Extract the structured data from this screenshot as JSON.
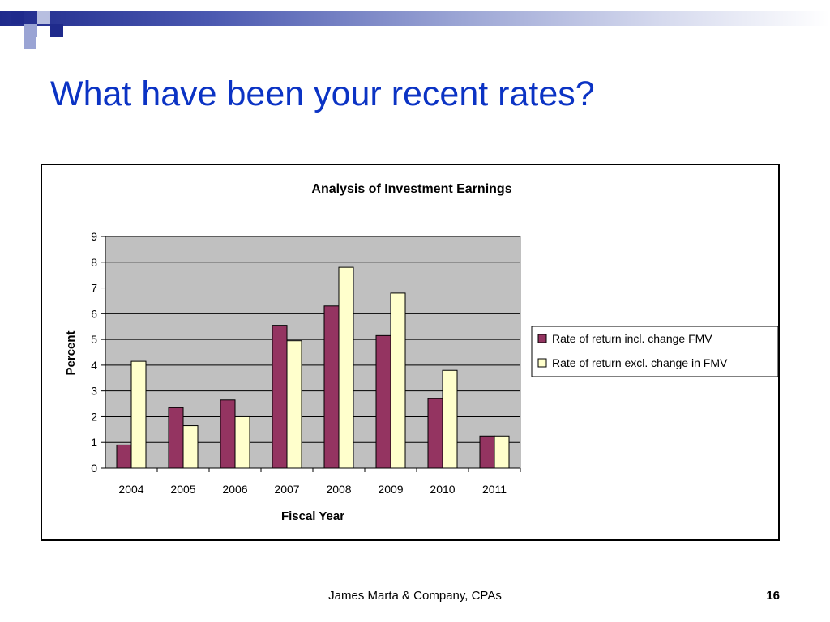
{
  "slide": {
    "title": "What have been your recent rates?",
    "footer_company": "James Marta & Company, CPAs",
    "page_number": "16",
    "colors": {
      "title": "#0b33c4",
      "decor_dark": "#1f2a8c",
      "decor_light": "#9aa4d4"
    }
  },
  "chart_data": {
    "type": "bar",
    "title": "Analysis of Investment Earnings",
    "xlabel": "Fiscal Year",
    "ylabel": "Percent",
    "categories": [
      "2004",
      "2005",
      "2006",
      "2007",
      "2008",
      "2009",
      "2010",
      "2011"
    ],
    "series": [
      {
        "name": "Rate of return incl. change FMV",
        "color": "#943461",
        "values": [
          0.9,
          2.35,
          2.65,
          5.55,
          6.3,
          5.15,
          2.7,
          1.25
        ]
      },
      {
        "name": "Rate of return excl. change in FMV",
        "color": "#ffffcc",
        "values": [
          4.15,
          1.65,
          2.0,
          4.95,
          7.8,
          6.8,
          3.8,
          1.25
        ]
      }
    ],
    "ylim": [
      0,
      9
    ],
    "yticks": [
      0,
      1,
      2,
      3,
      4,
      5,
      6,
      7,
      8,
      9
    ],
    "grid": true,
    "plot_background": "#c0c0c0",
    "legend_position": "right"
  }
}
